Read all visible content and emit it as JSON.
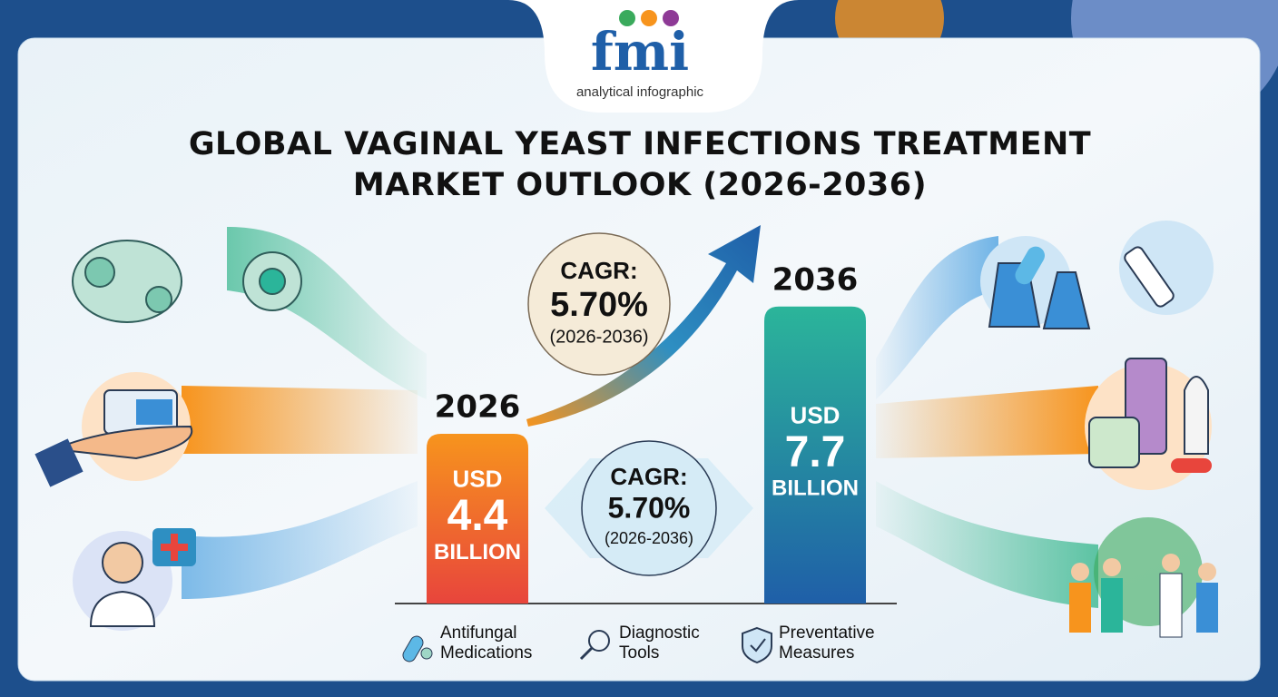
{
  "logo": {
    "brand": "fmi",
    "tagline": "analytical infographic"
  },
  "title": [
    "GLOBAL VAGINAL YEAST INFECTIONS TREATMENT",
    "MARKET OUTLOOK (2026-2036)"
  ],
  "bars": [
    {
      "year": "2026",
      "currency": "USD",
      "value": 4.4,
      "unit": "BILLION",
      "color_top": "#f7941d",
      "color_bottom": "#e8453c"
    },
    {
      "year": "2036",
      "currency": "USD",
      "value": 7.7,
      "unit": "BILLION",
      "color_top": "#2bb59a",
      "color_bottom": "#1f5fa8"
    }
  ],
  "cagr_badges": [
    {
      "label": "CAGR:",
      "rate": "5.70%",
      "period": "(2026-2036)"
    },
    {
      "label": "CAGR:",
      "rate": "5.70%",
      "period": "(2026-2036)"
    }
  ],
  "legend": [
    {
      "line1": "Antifungal",
      "line2": "Medications"
    },
    {
      "line1": "Diagnostic",
      "line2": "Tools"
    },
    {
      "line1": "Preventative",
      "line2": "Measures"
    }
  ]
}
